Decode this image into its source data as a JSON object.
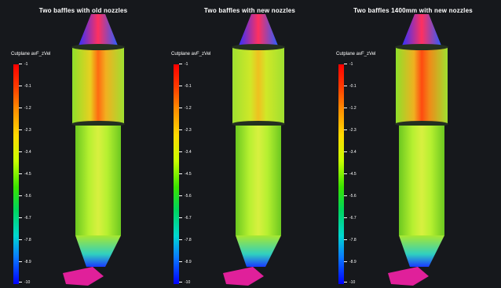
{
  "panels": [
    {
      "title": "Two baffles with old nozzles",
      "legend_title": "Cutplane avF_zVel",
      "ticks": [
        "-1",
        "-0.1",
        "-1.2",
        "-2.3",
        "-3.4",
        "-4.5",
        "-5.6",
        "-6.7",
        "-7.8",
        "-8.9",
        "-10"
      ]
    },
    {
      "title": "Two baffles with new nozzles",
      "legend_title": "Cutplane avF_zVel",
      "ticks": [
        "-1",
        "-0.1",
        "-1.2",
        "-2.3",
        "-3.4",
        "-4.5",
        "-5.6",
        "-6.7",
        "-7.8",
        "-8.9",
        "-10"
      ]
    },
    {
      "title": "Two baffles 1400mm with new nozzles",
      "legend_title": "Cutplane avF_zVel",
      "ticks": [
        "-1",
        "-0.1",
        "-1.2",
        "-2.3",
        "-3.4",
        "-4.5",
        "-5.6",
        "-6.7",
        "-7.8",
        "-8.9",
        "-10"
      ]
    }
  ],
  "colors": {
    "background": "#16181c",
    "scale_max": "#ff0000",
    "scale_min": "#0000ff",
    "nozzle": "#e0209a"
  }
}
